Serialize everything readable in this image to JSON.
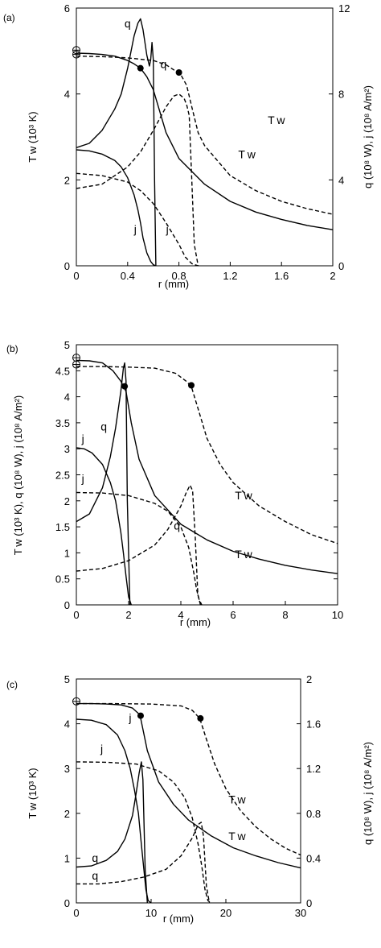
{
  "chart_data": [
    {
      "type": "line",
      "panel_label": "(a)",
      "xlabel": "r (mm)",
      "ylabel_left": "T w (10³ K)",
      "ylabel_right": "q (10⁸ W), j (10⁸ A/m²)",
      "xlim": [
        0,
        2
      ],
      "ylim_left": [
        0,
        6
      ],
      "ylim_right": [
        0,
        12
      ],
      "xticks": [
        "0",
        "0.4",
        "0.8",
        "1.2",
        "1.6",
        "2"
      ],
      "yticks_left": [
        "0",
        "2",
        "4",
        "6"
      ],
      "yticks_right": [
        "0",
        "4",
        "8",
        "12"
      ],
      "xtick_values": [
        0,
        0.4,
        0.8,
        1.2,
        1.6,
        2
      ],
      "ytick_values_left": [
        0,
        2,
        4,
        6
      ],
      "ytick_values_right": [
        0,
        4,
        8,
        12
      ],
      "series": [
        {
          "label": "T w",
          "style": "solid",
          "axis": "left",
          "x": [
            0,
            0.1,
            0.2,
            0.3,
            0.4,
            0.45,
            0.5,
            0.55,
            0.6,
            0.7,
            0.8,
            1.0,
            1.2,
            1.4,
            1.6,
            1.8,
            2.0
          ],
          "y": [
            4.95,
            4.94,
            4.92,
            4.88,
            4.78,
            4.7,
            4.6,
            4.4,
            4.1,
            3.1,
            2.5,
            1.9,
            1.5,
            1.25,
            1.08,
            0.94,
            0.84
          ]
        },
        {
          "label": "T w",
          "style": "dashed",
          "axis": "left",
          "x": [
            0,
            0.2,
            0.4,
            0.6,
            0.7,
            0.78,
            0.82,
            0.86,
            0.9,
            0.95,
            1.0,
            1.2,
            1.4,
            1.6,
            1.8,
            2.0
          ],
          "y": [
            4.88,
            4.87,
            4.84,
            4.78,
            4.68,
            4.52,
            4.42,
            4.2,
            3.7,
            3.1,
            2.8,
            2.1,
            1.75,
            1.5,
            1.33,
            1.2
          ]
        },
        {
          "label": "q",
          "style": "solid",
          "axis": "right",
          "x": [
            0,
            0.1,
            0.2,
            0.3,
            0.35,
            0.4,
            0.45,
            0.48,
            0.5,
            0.52,
            0.55,
            0.57,
            0.58,
            0.59,
            0.6,
            0.61,
            0.62
          ],
          "y": [
            5.5,
            5.7,
            6.3,
            7.3,
            8.0,
            9.2,
            10.7,
            11.3,
            11.5,
            11.0,
            9.8,
            9.3,
            9.6,
            10.4,
            9.6,
            4.0,
            0
          ]
        },
        {
          "label": "q",
          "style": "dashed",
          "axis": "right",
          "x": [
            0,
            0.2,
            0.4,
            0.5,
            0.6,
            0.7,
            0.76,
            0.8,
            0.84,
            0.86,
            0.88,
            0.9,
            0.92,
            0.95
          ],
          "y": [
            3.6,
            3.8,
            4.6,
            5.3,
            6.3,
            7.4,
            7.9,
            8.0,
            7.8,
            7.5,
            7.0,
            4.0,
            1.0,
            0
          ]
        },
        {
          "label": "j",
          "style": "solid",
          "axis": "right",
          "x": [
            0,
            0.1,
            0.2,
            0.3,
            0.35,
            0.4,
            0.45,
            0.48,
            0.5,
            0.52,
            0.55,
            0.58,
            0.6,
            0.62
          ],
          "y": [
            5.4,
            5.35,
            5.2,
            4.9,
            4.6,
            4.1,
            3.3,
            2.6,
            2.0,
            1.3,
            0.6,
            0.2,
            0.05,
            0
          ]
        },
        {
          "label": "j",
          "style": "dashed",
          "axis": "right",
          "x": [
            0,
            0.2,
            0.4,
            0.5,
            0.6,
            0.7,
            0.75,
            0.8,
            0.85,
            0.9,
            0.95
          ],
          "y": [
            4.3,
            4.2,
            3.9,
            3.5,
            2.9,
            2.0,
            1.5,
            1.0,
            0.4,
            0.1,
            0
          ]
        }
      ],
      "markers": [
        {
          "shape": "open-circle",
          "x": 0,
          "y": 5.02
        },
        {
          "shape": "open-circle",
          "x": 0,
          "y": 4.92
        },
        {
          "shape": "filled-circle",
          "x": 0.5,
          "y": 4.6
        },
        {
          "shape": "filled-circle",
          "x": 0.8,
          "y": 4.5
        }
      ],
      "curve_labels": [
        {
          "text": "q",
          "x": 0.4,
          "y": 5.55
        },
        {
          "text": "q",
          "x": 0.68,
          "y": 4.6
        },
        {
          "text": "T w",
          "x": 1.56,
          "y": 3.3
        },
        {
          "text": "T w",
          "x": 1.33,
          "y": 2.5
        },
        {
          "text": "j",
          "x": 0.46,
          "y": 0.76
        },
        {
          "text": "j",
          "x": 0.71,
          "y": 0.76
        }
      ]
    },
    {
      "type": "line",
      "panel_label": "(b)",
      "xlabel": "r (mm)",
      "ylabel_left": "T w (10³ K), q (10⁸ W), j (10⁸ A/m²)",
      "xlim": [
        0,
        10
      ],
      "ylim_left": [
        0,
        5
      ],
      "xticks": [
        "0",
        "2",
        "4",
        "6",
        "8",
        "10"
      ],
      "yticks_left": [
        "0",
        "0.5",
        "1",
        "1.5",
        "2",
        "2.5",
        "3",
        "3.5",
        "4",
        "4.5",
        "5"
      ],
      "xtick_values": [
        0,
        2,
        4,
        6,
        8,
        10
      ],
      "ytick_values_left": [
        0,
        0.5,
        1,
        1.5,
        2,
        2.5,
        3,
        3.5,
        4,
        4.5,
        5
      ],
      "series": [
        {
          "label": "T w",
          "style": "solid",
          "axis": "left",
          "x": [
            0,
            0.5,
            1.0,
            1.4,
            1.7,
            1.9,
            2.1,
            2.4,
            3.0,
            4.0,
            5.0,
            6.0,
            7.0,
            8.0,
            9.0,
            10.0
          ],
          "y": [
            4.7,
            4.69,
            4.65,
            4.5,
            4.3,
            4.1,
            3.5,
            2.8,
            2.1,
            1.55,
            1.25,
            1.03,
            0.88,
            0.76,
            0.67,
            0.6
          ]
        },
        {
          "label": "T w",
          "style": "dashed",
          "axis": "left",
          "x": [
            0,
            1.0,
            2.0,
            3.0,
            3.8,
            4.2,
            4.4,
            4.7,
            5.0,
            5.5,
            6.0,
            7.0,
            8.0,
            9.0,
            10.0
          ],
          "y": [
            4.58,
            4.58,
            4.57,
            4.55,
            4.45,
            4.3,
            4.2,
            3.7,
            3.2,
            2.7,
            2.35,
            1.9,
            1.6,
            1.35,
            1.18
          ]
        },
        {
          "label": "q",
          "style": "solid",
          "axis": "left",
          "x": [
            0,
            0.5,
            1.0,
            1.3,
            1.5,
            1.7,
            1.8,
            1.85,
            1.9,
            1.95,
            2.05
          ],
          "y": [
            1.6,
            1.75,
            2.25,
            2.85,
            3.4,
            4.1,
            4.55,
            4.65,
            4.3,
            2.0,
            0
          ]
        },
        {
          "label": "q",
          "style": "dashed",
          "axis": "left",
          "x": [
            0,
            1.0,
            2.0,
            3.0,
            3.5,
            4.0,
            4.2,
            4.35,
            4.45,
            4.55,
            4.65,
            4.75
          ],
          "y": [
            0.65,
            0.7,
            0.85,
            1.15,
            1.45,
            1.9,
            2.15,
            2.3,
            2.2,
            1.3,
            0.2,
            0
          ]
        },
        {
          "label": "j",
          "style": "solid",
          "axis": "left",
          "x": [
            0,
            0.3,
            0.6,
            1.0,
            1.3,
            1.5,
            1.7,
            1.8,
            1.9,
            2.0,
            2.1
          ],
          "y": [
            3.02,
            3.0,
            2.92,
            2.7,
            2.35,
            2.0,
            1.4,
            1.0,
            0.55,
            0.15,
            0
          ]
        },
        {
          "label": "j",
          "style": "dashed",
          "axis": "left",
          "x": [
            0,
            1.0,
            2.0,
            3.0,
            3.5,
            4.0,
            4.3,
            4.5,
            4.6,
            4.7,
            4.8
          ],
          "y": [
            2.16,
            2.15,
            2.1,
            1.95,
            1.8,
            1.5,
            1.1,
            0.6,
            0.3,
            0.1,
            0
          ]
        }
      ],
      "markers": [
        {
          "shape": "open-circle",
          "x": 0,
          "y": 4.75
        },
        {
          "shape": "open-circle",
          "x": 0,
          "y": 4.62
        },
        {
          "shape": "filled-circle",
          "x": 1.85,
          "y": 4.2
        },
        {
          "shape": "filled-circle",
          "x": 4.4,
          "y": 4.22
        }
      ],
      "curve_labels": [
        {
          "text": "j",
          "x": 0.25,
          "y": 3.12
        },
        {
          "text": "j",
          "x": 0.25,
          "y": 2.35
        },
        {
          "text": "q",
          "x": 1.05,
          "y": 3.35
        },
        {
          "text": "q",
          "x": 3.85,
          "y": 1.45
        },
        {
          "text": "T w",
          "x": 6.4,
          "y": 2.03
        },
        {
          "text": "T w",
          "x": 6.4,
          "y": 0.9
        }
      ]
    },
    {
      "type": "line",
      "panel_label": "(c)",
      "xlabel": "r (mm)",
      "ylabel_left": "T w (10³ K)",
      "ylabel_right": "q (10⁸ W), j (10⁸ A/m²)",
      "xlim": [
        0,
        30
      ],
      "ylim_left": [
        0,
        5
      ],
      "ylim_right": [
        0,
        2
      ],
      "xticks": [
        "0",
        "10",
        "20",
        "30"
      ],
      "yticks_left": [
        "0",
        "1",
        "2",
        "3",
        "4",
        "5"
      ],
      "yticks_right": [
        "0",
        "0.4",
        "0.8",
        "1.2",
        "1.6",
        "2"
      ],
      "xtick_values": [
        0,
        10,
        20,
        30
      ],
      "ytick_values_left": [
        0,
        1,
        2,
        3,
        4,
        5
      ],
      "ytick_values_right": [
        0,
        0.4,
        0.8,
        1.2,
        1.6,
        2
      ],
      "series": [
        {
          "label": "T w",
          "style": "solid",
          "axis": "left",
          "x": [
            0,
            2,
            4,
            6,
            7.5,
            8.5,
            9.5,
            11,
            13,
            15,
            18,
            21,
            24,
            27,
            30
          ],
          "y": [
            4.45,
            4.45,
            4.44,
            4.42,
            4.35,
            4.2,
            3.4,
            2.7,
            2.2,
            1.85,
            1.5,
            1.23,
            1.05,
            0.9,
            0.78
          ]
        },
        {
          "label": "T w",
          "style": "dashed",
          "axis": "left",
          "x": [
            0,
            5,
            10,
            14,
            15.5,
            16.5,
            17.5,
            18.5,
            20,
            22,
            24,
            26,
            28,
            30
          ],
          "y": [
            4.45,
            4.45,
            4.44,
            4.4,
            4.3,
            4.12,
            3.6,
            3.1,
            2.55,
            2.05,
            1.7,
            1.43,
            1.22,
            1.07
          ]
        },
        {
          "label": "q",
          "style": "solid",
          "axis": "right",
          "x": [
            0,
            2,
            4,
            5.5,
            6.5,
            7.5,
            8.0,
            8.4,
            8.7,
            8.9,
            9.2,
            9.5
          ],
          "y": [
            0.32,
            0.33,
            0.38,
            0.46,
            0.57,
            0.78,
            0.98,
            1.16,
            1.26,
            1.1,
            0.3,
            0
          ]
        },
        {
          "label": "q",
          "style": "dashed",
          "axis": "right",
          "x": [
            0,
            3,
            6,
            9,
            12,
            14,
            15.5,
            16.3,
            16.7,
            17.0,
            17.4,
            17.8
          ],
          "y": [
            0.17,
            0.17,
            0.19,
            0.23,
            0.3,
            0.42,
            0.58,
            0.7,
            0.72,
            0.6,
            0.15,
            0
          ]
        },
        {
          "label": "j",
          "style": "solid",
          "axis": "left",
          "x": [
            0,
            2,
            4,
            5.5,
            6.5,
            7.2,
            7.8,
            8.3,
            8.7,
            9.0,
            9.3,
            9.6,
            10
          ],
          "y": [
            4.1,
            4.08,
            3.98,
            3.75,
            3.4,
            3.0,
            2.5,
            2.0,
            1.3,
            0.8,
            0.3,
            0.05,
            0
          ]
        },
        {
          "label": "j",
          "style": "dashed",
          "axis": "left",
          "x": [
            0,
            4,
            8,
            11,
            13,
            14.5,
            15.5,
            16.3,
            16.8,
            17.2,
            17.6,
            18
          ],
          "y": [
            3.15,
            3.14,
            3.1,
            2.95,
            2.7,
            2.35,
            1.9,
            1.3,
            0.8,
            0.3,
            0.05,
            0
          ]
        }
      ],
      "markers": [
        {
          "shape": "open-circle",
          "x": 0,
          "y": 4.5
        },
        {
          "shape": "filled-circle",
          "x": 8.6,
          "y": 4.18
        },
        {
          "shape": "filled-circle",
          "x": 16.6,
          "y": 4.12
        }
      ],
      "curve_labels": [
        {
          "text": "j",
          "x": 7.2,
          "y": 4.05
        },
        {
          "text": "j",
          "x": 3.4,
          "y": 3.35
        },
        {
          "text": "q",
          "x": 2.5,
          "y": 0.92
        },
        {
          "text": "q",
          "x": 2.5,
          "y": 0.52
        },
        {
          "text": "T w",
          "x": 21.5,
          "y": 2.22
        },
        {
          "text": "T w",
          "x": 21.5,
          "y": 1.4
        }
      ]
    }
  ]
}
